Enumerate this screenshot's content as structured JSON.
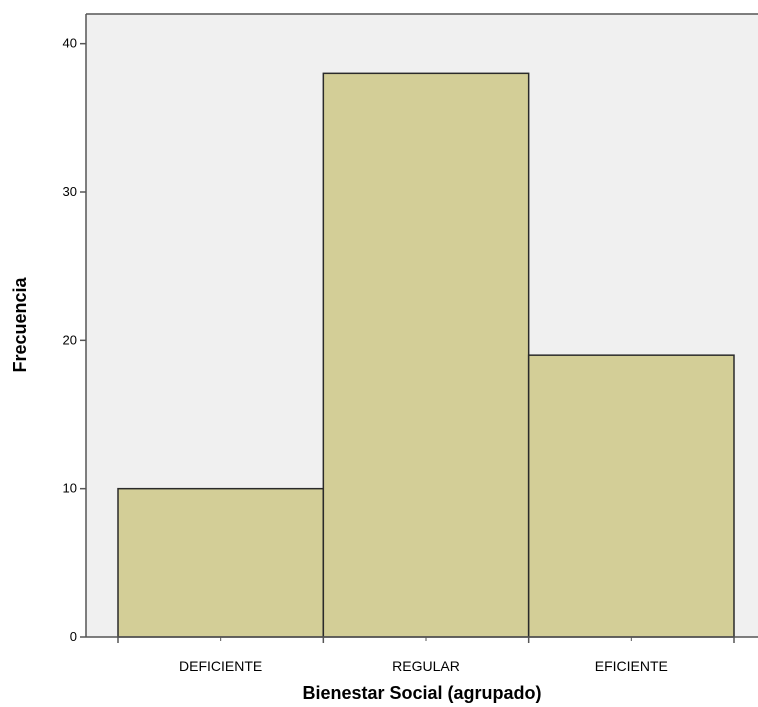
{
  "chart_data": {
    "type": "bar",
    "title": "",
    "xlabel": "Bienestar Social (agrupado)",
    "ylabel": "Frecuencia",
    "categories": [
      "DEFICIENTE",
      "REGULAR",
      "EFICIENTE"
    ],
    "values": [
      10,
      38,
      19
    ],
    "ylim": [
      0,
      42
    ],
    "yticks": [
      0,
      10,
      20,
      30,
      40
    ],
    "grid": false,
    "legend": "none",
    "colors": {
      "plot_background": "#f0f0f0",
      "bar_fill": "#d3ce97",
      "bar_stroke": "#2a2a2a",
      "axis": "#555555"
    }
  }
}
